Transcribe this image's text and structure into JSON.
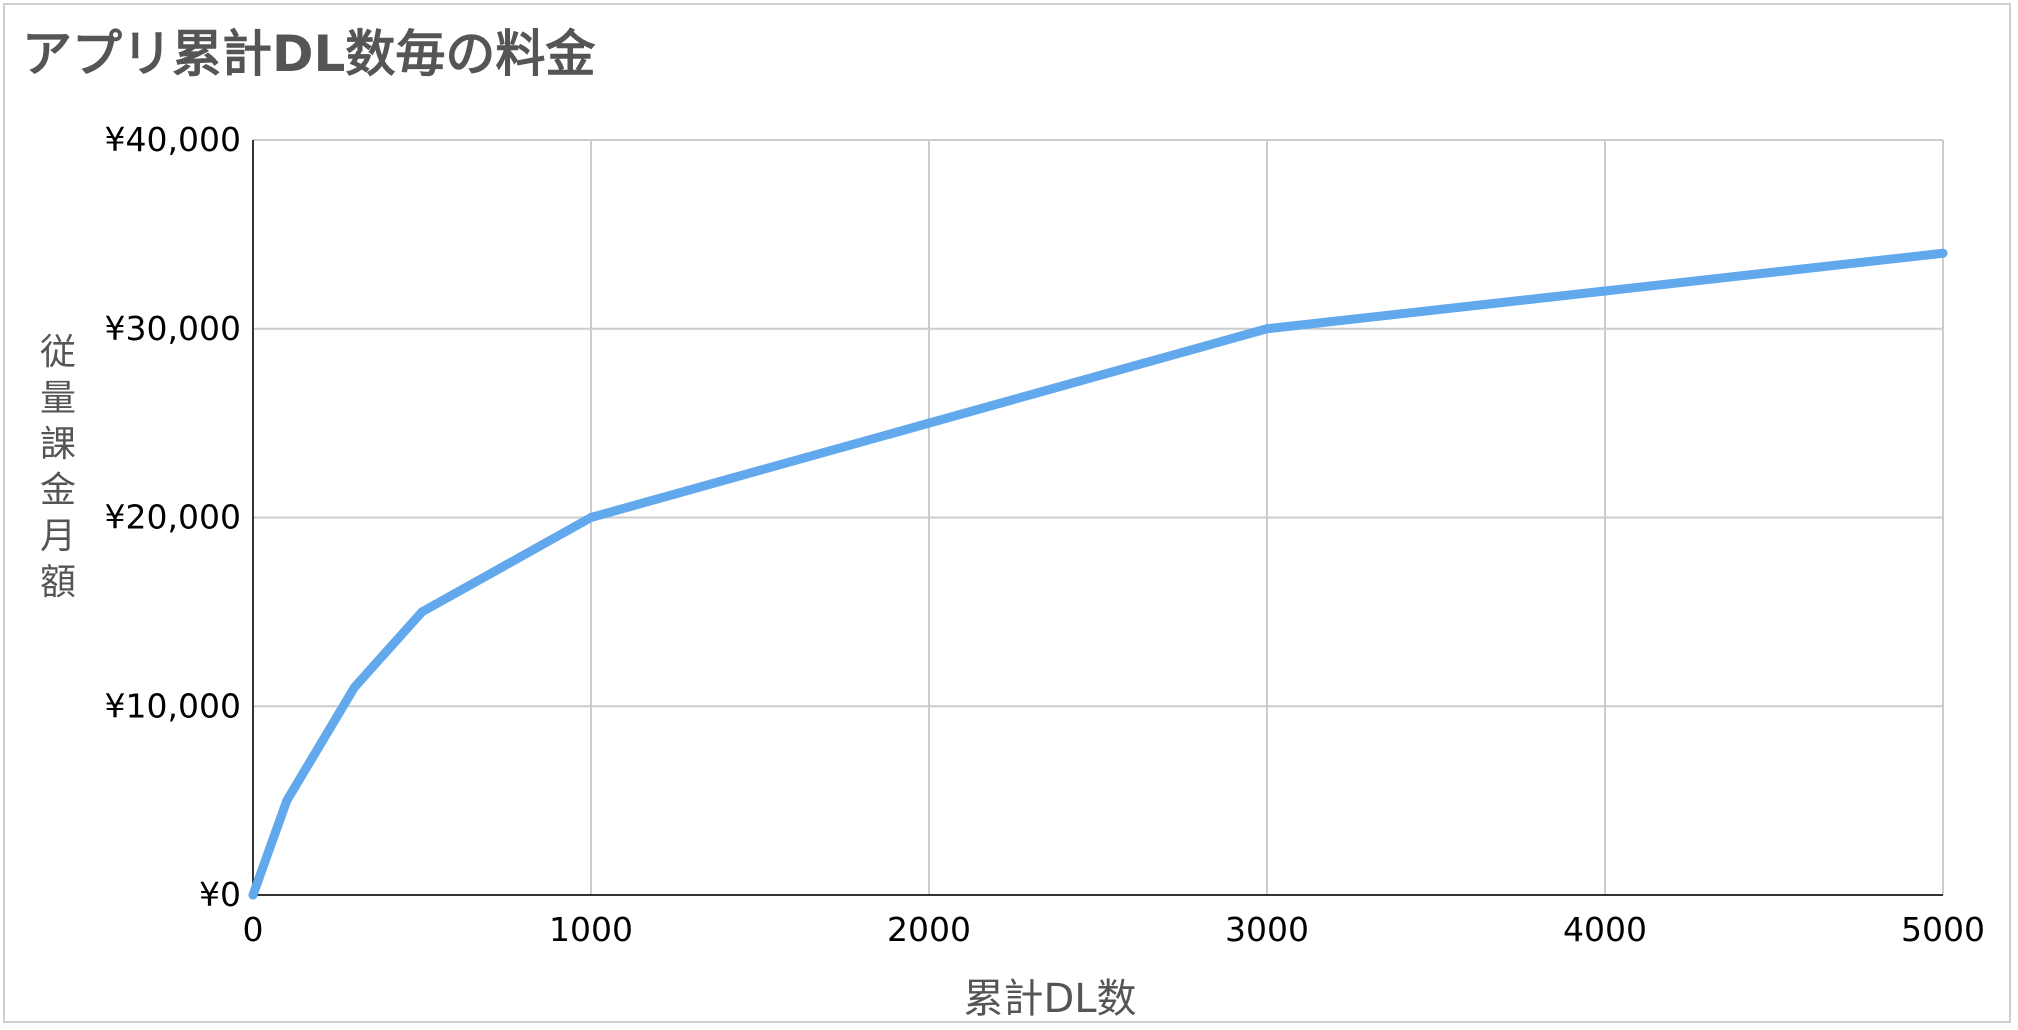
{
  "chart_data": {
    "type": "line",
    "title": "アプリ累計DL数毎の料金",
    "xlabel": "累計DL数",
    "ylabel": "従量課金月額",
    "xlim": [
      0,
      5000
    ],
    "ylim": [
      0,
      40000
    ],
    "x_ticks": [
      "0",
      "1000",
      "2000",
      "3000",
      "4000",
      "5000"
    ],
    "y_ticks": [
      "¥0",
      "¥10,000",
      "¥20,000",
      "¥30,000",
      "¥40,000"
    ],
    "grid": true,
    "legend": "none",
    "colors": {
      "line": "#62a8ec",
      "grid": "#cccccc",
      "axis": "#333333",
      "text": "#000000",
      "label": "#555555"
    },
    "series": [
      {
        "x": [
          0,
          100,
          300,
          500,
          1000,
          2000,
          3000,
          4000,
          5000
        ],
        "values": [
          0,
          5000,
          11000,
          15000,
          20000,
          25000,
          30000,
          32000,
          34000
        ]
      }
    ]
  }
}
